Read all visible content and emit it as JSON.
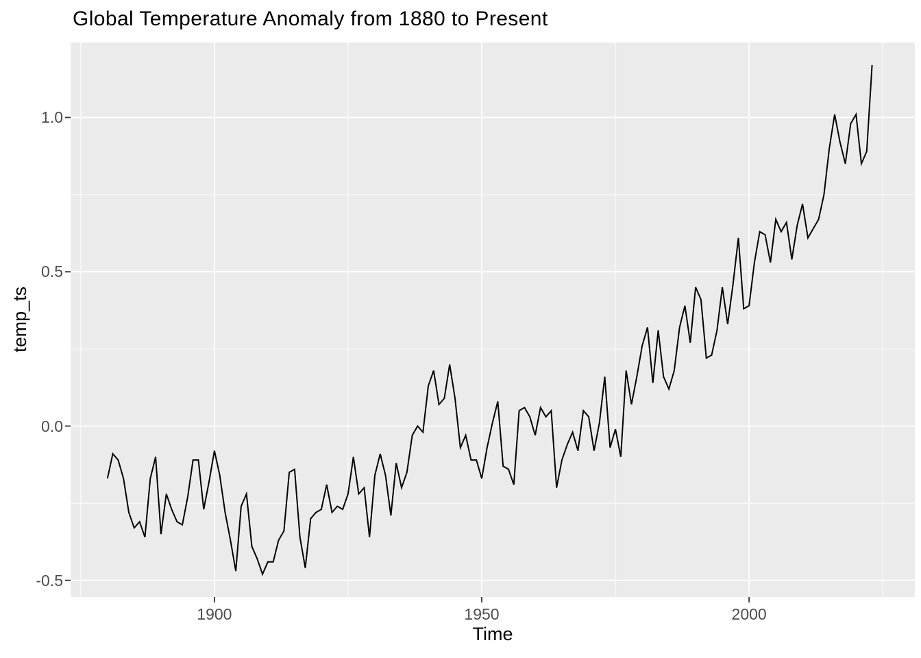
{
  "chart_data": {
    "type": "line",
    "title": "Global Temperature Anomaly from 1880 to Present",
    "xlabel": "Time",
    "ylabel": "temp_ts",
    "series_name": "temp_ts",
    "grid": true,
    "legend": false,
    "xlim": [
      1873.1,
      2031.0
    ],
    "ylim": [
      -0.554,
      1.243
    ],
    "x_ticks": [
      1900,
      1950,
      2000
    ],
    "x_tick_labels": [
      "1900",
      "1950",
      "2000"
    ],
    "x_minor_ticks": [
      1875,
      1925,
      1975,
      2025
    ],
    "y_ticks": [
      -0.5,
      0.0,
      0.5,
      1.0
    ],
    "y_tick_labels": [
      "-0.5",
      "0.0",
      "0.5",
      "1.0"
    ],
    "y_minor_ticks": [
      -0.25,
      0.25,
      0.75
    ],
    "x": [
      1880,
      1881,
      1882,
      1883,
      1884,
      1885,
      1886,
      1887,
      1888,
      1889,
      1890,
      1891,
      1892,
      1893,
      1894,
      1895,
      1896,
      1897,
      1898,
      1899,
      1900,
      1901,
      1902,
      1903,
      1904,
      1905,
      1906,
      1907,
      1908,
      1909,
      1910,
      1911,
      1912,
      1913,
      1914,
      1915,
      1916,
      1917,
      1918,
      1919,
      1920,
      1921,
      1922,
      1923,
      1924,
      1925,
      1926,
      1927,
      1928,
      1929,
      1930,
      1931,
      1932,
      1933,
      1934,
      1935,
      1936,
      1937,
      1938,
      1939,
      1940,
      1941,
      1942,
      1943,
      1944,
      1945,
      1946,
      1947,
      1948,
      1949,
      1950,
      1951,
      1952,
      1953,
      1954,
      1955,
      1956,
      1957,
      1958,
      1959,
      1960,
      1961,
      1962,
      1963,
      1964,
      1965,
      1966,
      1967,
      1968,
      1969,
      1970,
      1971,
      1972,
      1973,
      1974,
      1975,
      1976,
      1977,
      1978,
      1979,
      1980,
      1981,
      1982,
      1983,
      1984,
      1985,
      1986,
      1987,
      1988,
      1989,
      1990,
      1991,
      1992,
      1993,
      1994,
      1995,
      1996,
      1997,
      1998,
      1999,
      2000,
      2001,
      2002,
      2003,
      2004,
      2005,
      2006,
      2007,
      2008,
      2009,
      2010,
      2011,
      2012,
      2013,
      2014,
      2015,
      2016,
      2017,
      2018,
      2019,
      2020,
      2021,
      2022,
      2023
    ],
    "y": [
      -0.17,
      -0.09,
      -0.11,
      -0.17,
      -0.28,
      -0.33,
      -0.31,
      -0.36,
      -0.17,
      -0.1,
      -0.35,
      -0.22,
      -0.27,
      -0.31,
      -0.32,
      -0.23,
      -0.11,
      -0.11,
      -0.27,
      -0.18,
      -0.08,
      -0.16,
      -0.28,
      -0.37,
      -0.47,
      -0.26,
      -0.22,
      -0.39,
      -0.43,
      -0.48,
      -0.44,
      -0.44,
      -0.37,
      -0.34,
      -0.15,
      -0.14,
      -0.36,
      -0.46,
      -0.3,
      -0.28,
      -0.27,
      -0.19,
      -0.28,
      -0.26,
      -0.27,
      -0.22,
      -0.1,
      -0.22,
      -0.2,
      -0.36,
      -0.16,
      -0.09,
      -0.16,
      -0.29,
      -0.12,
      -0.2,
      -0.15,
      -0.03,
      0.0,
      -0.02,
      0.13,
      0.18,
      0.07,
      0.09,
      0.2,
      0.09,
      -0.07,
      -0.03,
      -0.11,
      -0.11,
      -0.17,
      -0.07,
      0.01,
      0.08,
      -0.13,
      -0.14,
      -0.19,
      0.05,
      0.06,
      0.03,
      -0.03,
      0.06,
      0.03,
      0.05,
      -0.2,
      -0.11,
      -0.06,
      -0.02,
      -0.08,
      0.05,
      0.03,
      -0.08,
      0.01,
      0.16,
      -0.07,
      -0.01,
      -0.1,
      0.18,
      0.07,
      0.16,
      0.26,
      0.32,
      0.14,
      0.31,
      0.16,
      0.12,
      0.18,
      0.32,
      0.39,
      0.27,
      0.45,
      0.41,
      0.22,
      0.23,
      0.31,
      0.45,
      0.33,
      0.46,
      0.61,
      0.38,
      0.39,
      0.53,
      0.63,
      0.62,
      0.53,
      0.67,
      0.63,
      0.66,
      0.54,
      0.65,
      0.72,
      0.61,
      0.64,
      0.67,
      0.75,
      0.9,
      1.01,
      0.92,
      0.85,
      0.98,
      1.01,
      0.85,
      0.89,
      1.17
    ]
  },
  "style": {
    "background": "#FFFFFF",
    "panel_bg": "#EBEBEB",
    "grid_color": "#FFFFFF",
    "line_color": "#000000",
    "axis_text_color": "#4D4D4D",
    "tick_mark_color": "#333333",
    "title_color": "#000000"
  }
}
